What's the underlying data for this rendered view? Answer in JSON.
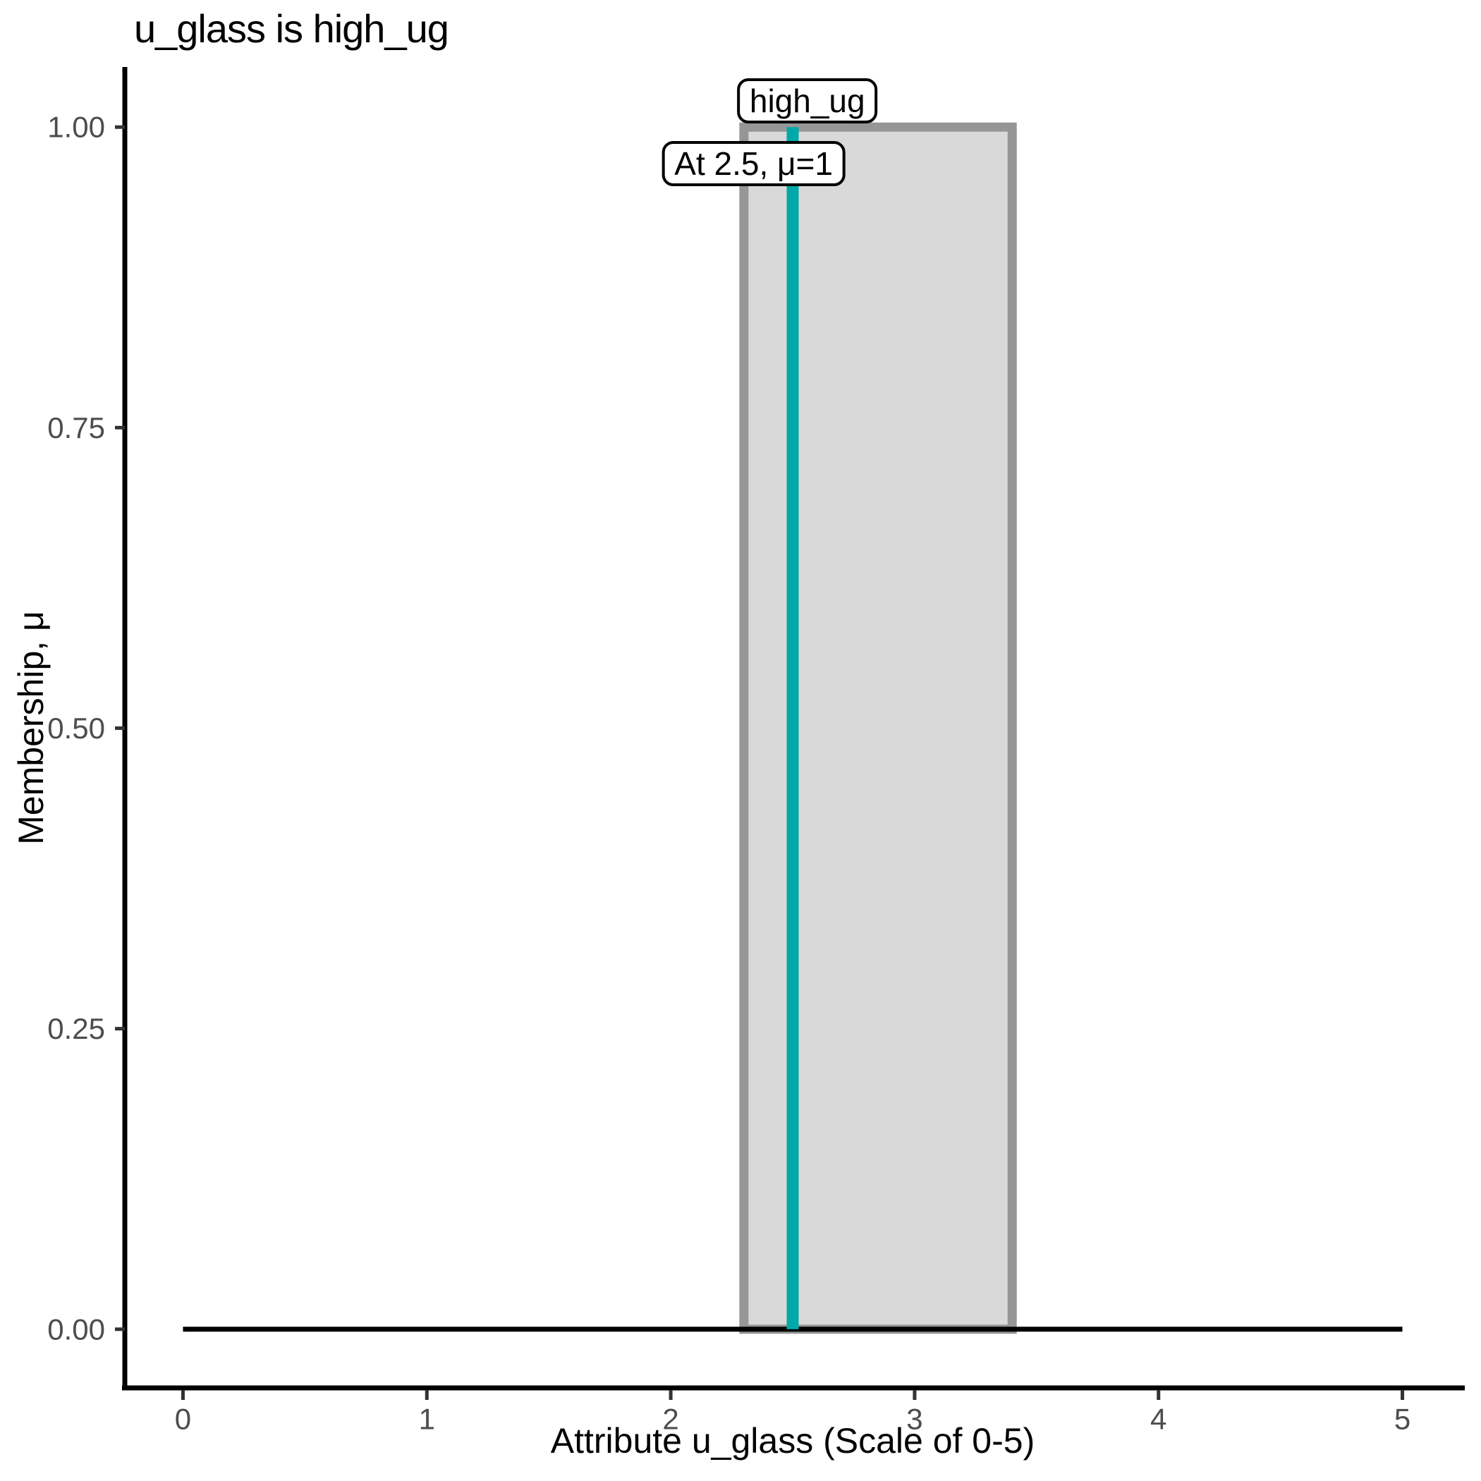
{
  "figure": {
    "background": "#ffffff"
  },
  "chart_data": {
    "type": "area",
    "title": "u_glass is high_ug",
    "xlabel": "Attribute u_glass (Scale of 0-5)",
    "ylabel": "Membership, μ",
    "xlim": [
      0,
      5
    ],
    "ylim": [
      0,
      1
    ],
    "grid": false,
    "legend": "none",
    "x_ticks": [
      {
        "value": 0,
        "label": "0"
      },
      {
        "value": 1,
        "label": "1"
      },
      {
        "value": 2,
        "label": "2"
      },
      {
        "value": 3,
        "label": "3"
      },
      {
        "value": 4,
        "label": "4"
      },
      {
        "value": 5,
        "label": "5"
      }
    ],
    "y_ticks": [
      {
        "value": 0.0,
        "label": "0.00"
      },
      {
        "value": 0.25,
        "label": "0.25"
      },
      {
        "value": 0.5,
        "label": "0.50"
      },
      {
        "value": 0.75,
        "label": "0.75"
      },
      {
        "value": 1.0,
        "label": "1.00"
      }
    ],
    "fuzzy_set": {
      "name": "high_ug",
      "shape": "rectangle",
      "x_start": 2.3,
      "x_end": 3.4,
      "mu_inside": 1,
      "mu_outside": 0
    },
    "baseline": {
      "x_start": 0,
      "x_end": 5,
      "mu": 0
    },
    "marker_line": {
      "x": 2.5,
      "mu_bottom": 0,
      "mu_top": 1
    },
    "annotations": [
      {
        "id": "set-name",
        "text": "high_ug",
        "x": 2.56,
        "mu": 1,
        "placement": "above"
      },
      {
        "id": "marker-readout",
        "text": "At 2.5, μ=1",
        "x": 2.34,
        "mu": 1,
        "placement": "below"
      }
    ],
    "colors": {
      "set_fill": "#d9d9d9",
      "set_border": "#969696",
      "marker_line": "#00a9a9",
      "baseline": "#000000",
      "axis_line": "#000000",
      "tick_mark": "#333333",
      "tick_text": "#4d4d4d",
      "title_text": "#000000",
      "label_box_bg": "#ffffff",
      "label_box_border": "#000000"
    }
  }
}
